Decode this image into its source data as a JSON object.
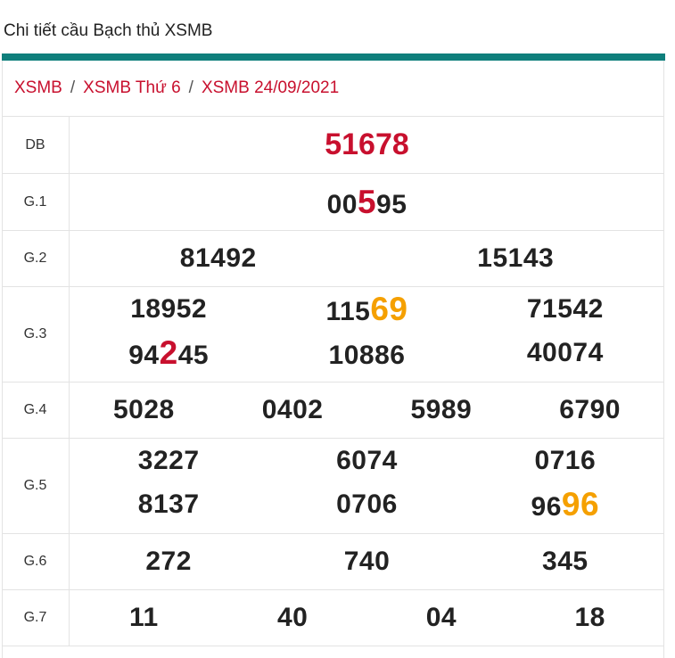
{
  "page_title": "Chi tiết cầu Bạch thủ XSMB",
  "breadcrumb": [
    "XSMB",
    "XSMB Thứ 6",
    "XSMB 24/09/2021"
  ],
  "breadcrumb_sep": "/",
  "colors": {
    "accent_bar": "#0f7f7c",
    "highlight_red": "#c8102e",
    "highlight_orange": "#f5a000"
  },
  "prizes": {
    "db": {
      "label": "DB",
      "value": "51678"
    },
    "g1": {
      "label": "G.1",
      "parts": [
        "00",
        "5",
        "95"
      ]
    },
    "g2": {
      "label": "G.2",
      "values": [
        "81492",
        "15143"
      ]
    },
    "g3": {
      "label": "G.3",
      "v1": "18952",
      "v2_pre": "115",
      "v2_hl": "69",
      "v3": "71542",
      "v4_pre": "94",
      "v4_hl": "2",
      "v4_post": "45",
      "v5": "10886",
      "v6": "40074"
    },
    "g4": {
      "label": "G.4",
      "values": [
        "5028",
        "0402",
        "5989",
        "6790"
      ]
    },
    "g5": {
      "label": "G.5",
      "v1": "3227",
      "v2": "6074",
      "v3": "0716",
      "v4": "8137",
      "v5": "0706",
      "v6_pre": "96",
      "v6_hl": "96"
    },
    "g6": {
      "label": "G.6",
      "values": [
        "272",
        "740",
        "345"
      ]
    },
    "g7": {
      "label": "G.7",
      "values": [
        "11",
        "40",
        "04",
        "18"
      ]
    }
  }
}
